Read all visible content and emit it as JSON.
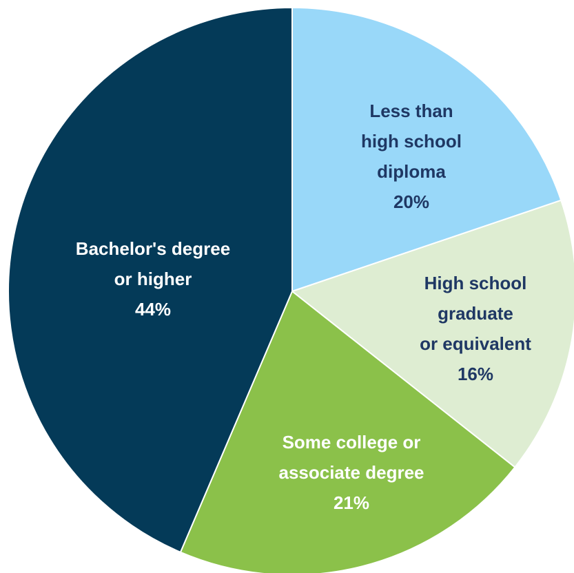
{
  "chart_data": {
    "type": "pie",
    "title": "",
    "start_angle_deg": 0,
    "direction": "clockwise",
    "slices": [
      {
        "label_lines": [
          "Less than",
          "high school",
          "diploma"
        ],
        "value_label": "20%",
        "value": 20,
        "color": "#99d8f9",
        "text_color": "#1f3864"
      },
      {
        "label_lines": [
          "High school",
          "graduate",
          "or equivalent"
        ],
        "value_label": "16%",
        "value": 16,
        "color": "#deedd2",
        "text_color": "#1f3864"
      },
      {
        "label_lines": [
          "Some college or",
          "associate degree"
        ],
        "value_label": "21%",
        "value": 21,
        "color": "#8bc14a",
        "text_color": "#ffffff"
      },
      {
        "label_lines": [
          "Bachelor's degree",
          "or higher"
        ],
        "value_label": "44%",
        "value": 44,
        "color": "#043a58",
        "text_color": "#ffffff"
      }
    ]
  }
}
